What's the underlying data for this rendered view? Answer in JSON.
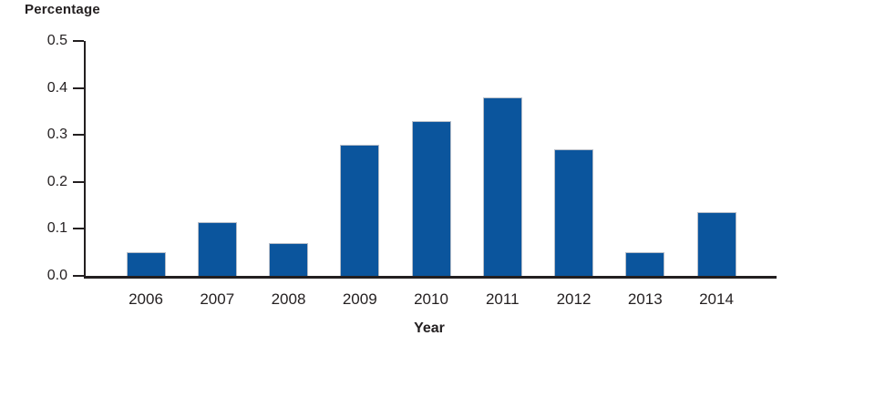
{
  "chart_data": {
    "type": "bar",
    "title": "",
    "ylabel": "Percentage",
    "xlabel": "Year",
    "categories": [
      "2006",
      "2007",
      "2008",
      "2009",
      "2010",
      "2011",
      "2012",
      "2013",
      "2014"
    ],
    "values": [
      0.05,
      0.115,
      0.07,
      0.28,
      0.33,
      0.38,
      0.27,
      0.05,
      0.135
    ],
    "ylim": [
      0,
      0.5
    ],
    "ytick_labels": [
      "0.0",
      "0.1",
      "0.2",
      "0.3",
      "0.4",
      "0.5"
    ],
    "grid": false,
    "legend": "none",
    "bar_color": "#0B559D",
    "bar_border_color": "#B6BDC8",
    "axis_color": "#231F20",
    "text_color": "#231F20",
    "background_color": "#FFFFFF"
  }
}
